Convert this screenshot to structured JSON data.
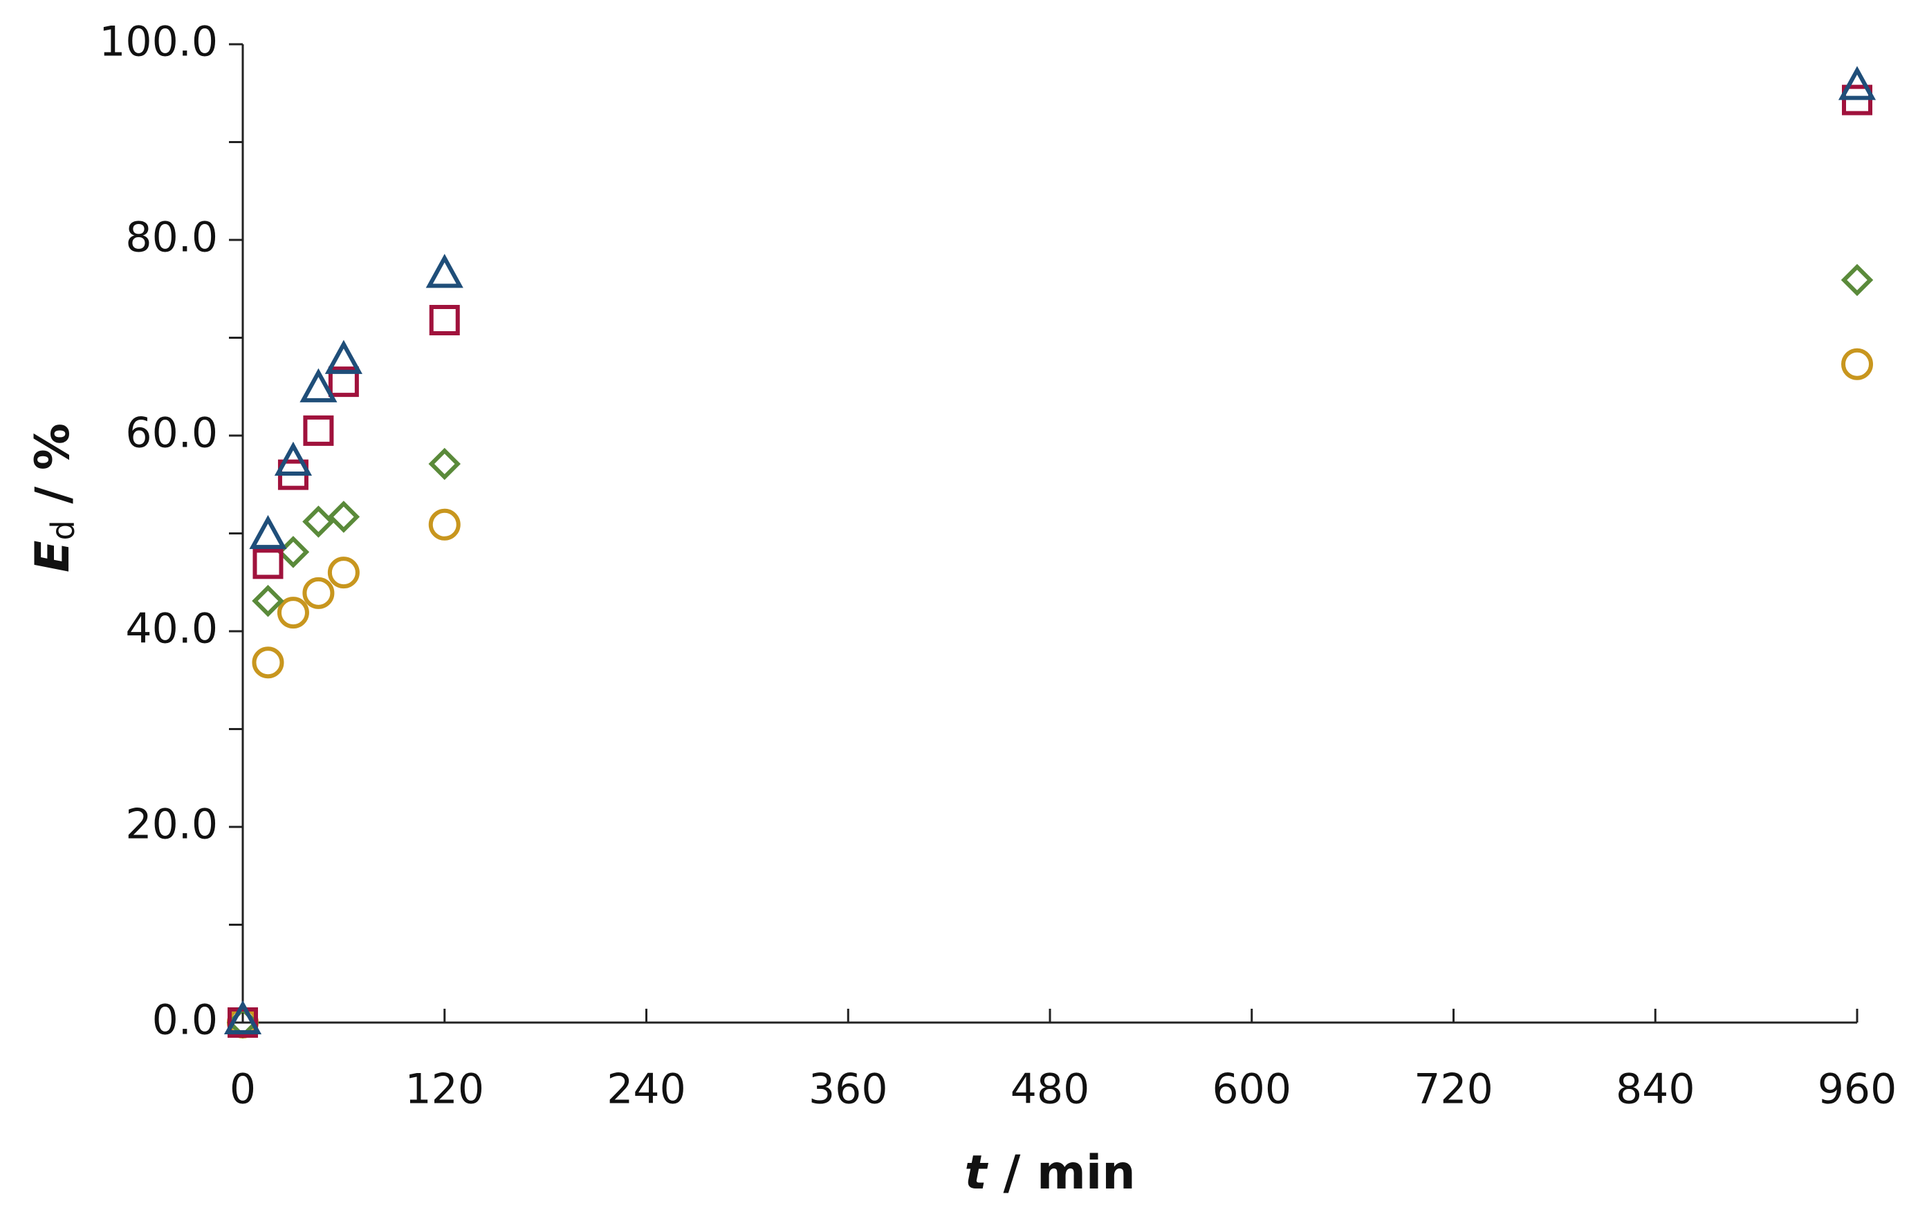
{
  "chart_data": {
    "type": "scatter",
    "x": [
      0,
      15,
      30,
      45,
      60,
      120,
      960
    ],
    "series": [
      {
        "marker": "circle",
        "color": "#c8961e",
        "values": [
          0,
          36.8,
          41.9,
          43.9,
          46.0,
          50.9,
          67.3
        ]
      },
      {
        "marker": "diamond",
        "color": "#5a8a3a",
        "values": [
          0,
          43.1,
          48.1,
          51.2,
          51.7,
          57.1,
          75.9
        ]
      },
      {
        "marker": "square",
        "color": "#a0123c",
        "values": [
          0,
          46.9,
          56.0,
          60.5,
          65.5,
          71.8,
          94.3
        ]
      },
      {
        "marker": "triangle",
        "color": "#1f4e79",
        "values": [
          0,
          49.6,
          57.1,
          64.6,
          67.5,
          76.3,
          95.5
        ]
      }
    ],
    "xlabel": {
      "symbol": "t",
      "rest": " / min"
    },
    "ylabel": {
      "symbol": "E",
      "subscript": "d",
      "rest": " / %"
    },
    "xlim": [
      0,
      960
    ],
    "xticks": [
      0,
      120,
      240,
      360,
      480,
      600,
      720,
      840,
      960
    ],
    "ylim": [
      0,
      100
    ],
    "yticks": [
      {
        "value": 0,
        "label": "0.0"
      },
      {
        "value": 20,
        "label": "20.0"
      },
      {
        "value": 40,
        "label": "40.0"
      },
      {
        "value": 60,
        "label": "60.0"
      },
      {
        "value": 80,
        "label": "80.0"
      },
      {
        "value": 100,
        "label": "100.0"
      }
    ],
    "yminorticks": [
      10,
      30,
      50,
      70,
      90
    ],
    "grid": false
  }
}
